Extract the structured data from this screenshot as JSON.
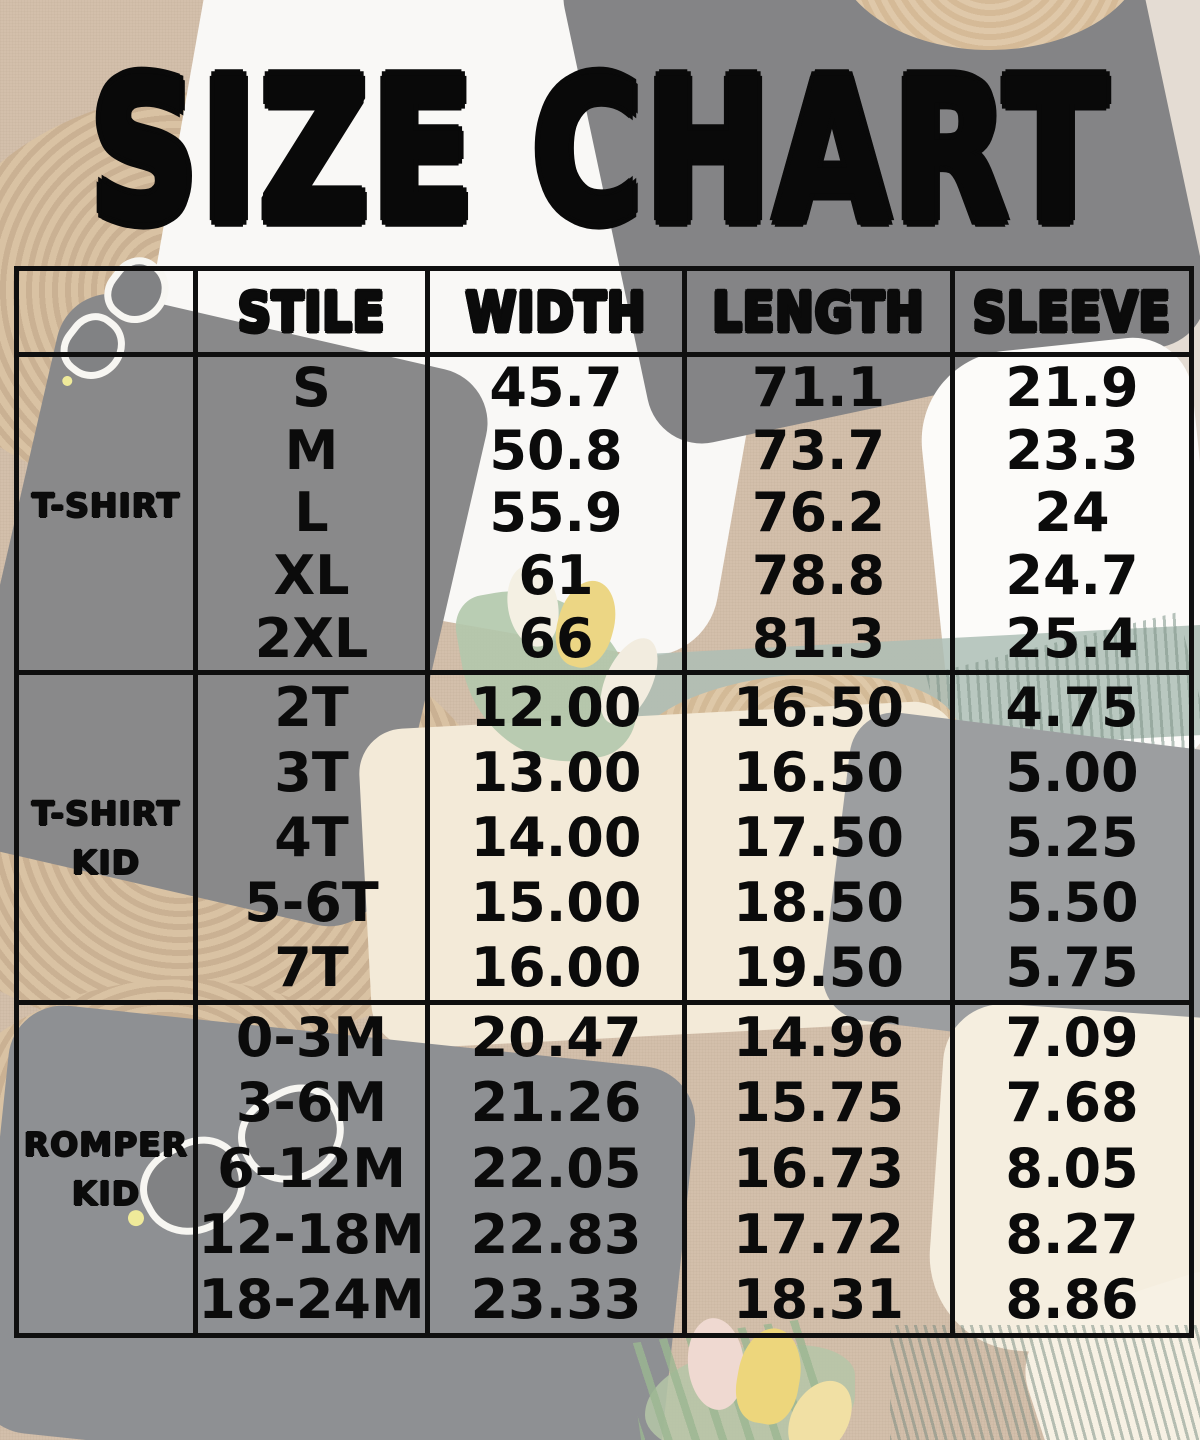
{
  "colors": {
    "text_black": "#0b0b0b",
    "burlap_tan": "#cdb7a1",
    "border_black": "#0f0f0f"
  },
  "chart_data": {
    "type": "table",
    "title": "SIZE CHART",
    "columns": [
      "",
      "STILE",
      "WIDTH",
      "LENGTH",
      "SLEEVE"
    ],
    "row_groups": [
      {
        "group": "T-SHIRT",
        "label_lines": [
          "T-SHIRT"
        ],
        "rows": [
          [
            "S",
            "45.7",
            "71.1",
            "21.9"
          ],
          [
            "M",
            "50.8",
            "73.7",
            "23.3"
          ],
          [
            "L",
            "55.9",
            "76.2",
            "24"
          ],
          [
            "XL",
            "61",
            "78.8",
            "24.7"
          ],
          [
            "2XL",
            "66",
            "81.3",
            "25.4"
          ]
        ]
      },
      {
        "group": "T-SHIRT KID",
        "label_lines": [
          "T-SHIRT",
          "KID"
        ],
        "rows": [
          [
            "2T",
            "12.00",
            "16.50",
            "4.75"
          ],
          [
            "3T",
            "13.00",
            "16.50",
            "5.00"
          ],
          [
            "4T",
            "14.00",
            "17.50",
            "5.25"
          ],
          [
            "5-6T",
            "15.00",
            "18.50",
            "5.50"
          ],
          [
            "7T",
            "16.00",
            "19.50",
            "5.75"
          ]
        ]
      },
      {
        "group": "ROMPER KID",
        "label_lines": [
          "ROMPER",
          "KID"
        ],
        "rows": [
          [
            "0-3M",
            "20.47",
            "14.96",
            "7.09"
          ],
          [
            "3-6M",
            "21.26",
            "15.75",
            "7.68"
          ],
          [
            "6-12M",
            "22.05",
            "16.73",
            "8.05"
          ],
          [
            "12-18M",
            "22.83",
            "17.72",
            "8.27"
          ],
          [
            "18-24M",
            "23.33",
            "18.31",
            "8.86"
          ]
        ]
      }
    ]
  }
}
